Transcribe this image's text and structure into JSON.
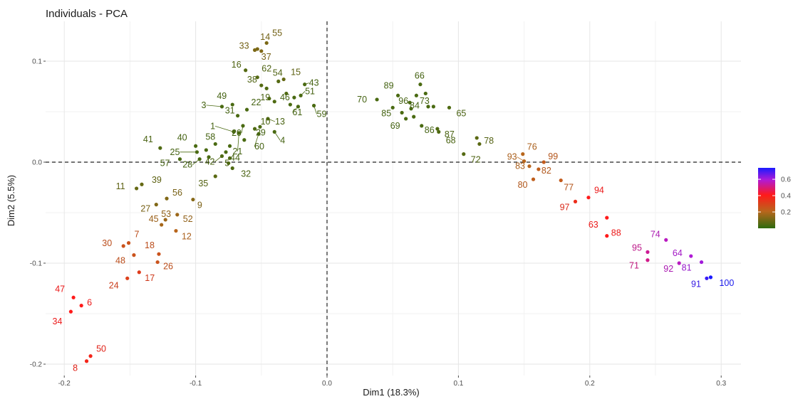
{
  "chart_data": {
    "type": "scatter",
    "title": "Individuals - PCA",
    "xlabel": "Dim1 (18.3%)",
    "ylabel": "Dim2 (5.5%)",
    "xlim": [
      -0.21,
      0.31
    ],
    "ylim": [
      -0.21,
      0.13
    ],
    "x_ticks": [
      -0.2,
      -0.1,
      0.0,
      0.1,
      0.2,
      0.3
    ],
    "x_tick_labels": [
      "-0.2",
      "-0.1",
      "0.0",
      "0.1",
      "0.2",
      "0.3"
    ],
    "y_ticks": [
      -0.2,
      -0.1,
      0.0,
      0.1
    ],
    "y_tick_labels": [
      "-0.2",
      "-0.1",
      "0.0",
      "0.1"
    ],
    "grid": true,
    "reference_lines": {
      "x": 0,
      "y": 0,
      "style": "dashed"
    },
    "legend": {
      "placement": "right",
      "type": "colorbar",
      "ticks": [
        0.2,
        0.4,
        0.6
      ],
      "tick_labels": [
        "0.2",
        "0.4",
        "0.6"
      ],
      "colors": [
        "#2e6b0f",
        "#b8661c",
        "#ff1a1a",
        "#b01ad6",
        "#1a1aff"
      ]
    },
    "points": [
      {
        "label": "1",
        "x": -0.071,
        "y": 0.03,
        "c": 0.05
      },
      {
        "label": "3",
        "x": -0.08,
        "y": 0.055,
        "c": 0.05
      },
      {
        "label": "4",
        "x": -0.04,
        "y": 0.03,
        "c": 0.05
      },
      {
        "label": "5",
        "x": -0.075,
        "y": -0.001,
        "c": 0.06
      },
      {
        "label": "6",
        "x": -0.187,
        "y": -0.142,
        "c": 0.45
      },
      {
        "label": "7",
        "x": -0.151,
        "y": -0.08,
        "c": 0.3
      },
      {
        "label": "8",
        "x": -0.183,
        "y": -0.197,
        "c": 0.42
      },
      {
        "label": "9",
        "x": -0.102,
        "y": -0.037,
        "c": 0.16
      },
      {
        "label": "10",
        "x": -0.055,
        "y": 0.033,
        "c": 0.06
      },
      {
        "label": "11",
        "x": -0.145,
        "y": -0.026,
        "c": 0.1
      },
      {
        "label": "12",
        "x": -0.115,
        "y": -0.068,
        "c": 0.25
      },
      {
        "label": "13",
        "x": -0.045,
        "y": 0.043,
        "c": 0.06
      },
      {
        "label": "14",
        "x": -0.053,
        "y": 0.112,
        "c": 0.14
      },
      {
        "label": "15",
        "x": -0.033,
        "y": 0.082,
        "c": 0.1
      },
      {
        "label": "16",
        "x": -0.062,
        "y": 0.091,
        "c": 0.07
      },
      {
        "label": "17",
        "x": -0.143,
        "y": -0.109,
        "c": 0.36
      },
      {
        "label": "18",
        "x": -0.128,
        "y": -0.091,
        "c": 0.3
      },
      {
        "label": "19",
        "x": -0.04,
        "y": 0.06,
        "c": 0.06
      },
      {
        "label": "20",
        "x": -0.064,
        "y": 0.036,
        "c": 0.05
      },
      {
        "label": "21",
        "x": -0.067,
        "y": 0.029,
        "c": 0.05
      },
      {
        "label": "22",
        "x": -0.061,
        "y": 0.052,
        "c": 0.05
      },
      {
        "label": "24",
        "x": -0.152,
        "y": -0.115,
        "c": 0.35
      },
      {
        "label": "25",
        "x": -0.099,
        "y": 0.01,
        "c": 0.05
      },
      {
        "label": "26",
        "x": -0.129,
        "y": -0.099,
        "c": 0.3
      },
      {
        "label": "27",
        "x": -0.13,
        "y": -0.042,
        "c": 0.15
      },
      {
        "label": "28",
        "x": -0.097,
        "y": 0.003,
        "c": 0.05
      },
      {
        "label": "29",
        "x": -0.051,
        "y": 0.035,
        "c": 0.05
      },
      {
        "label": "30",
        "x": -0.155,
        "y": -0.083,
        "c": 0.3
      },
      {
        "label": "31",
        "x": -0.068,
        "y": 0.046,
        "c": 0.05
      },
      {
        "label": "32",
        "x": -0.072,
        "y": -0.006,
        "c": 0.06
      },
      {
        "label": "33",
        "x": -0.055,
        "y": 0.111,
        "c": 0.14
      },
      {
        "label": "34",
        "x": -0.195,
        "y": -0.148,
        "c": 0.45
      },
      {
        "label": "35",
        "x": -0.085,
        "y": -0.014,
        "c": 0.08
      },
      {
        "label": "37",
        "x": -0.05,
        "y": 0.11,
        "c": 0.15
      },
      {
        "label": "38",
        "x": -0.05,
        "y": 0.076,
        "c": 0.07
      },
      {
        "label": "39",
        "x": -0.141,
        "y": -0.022,
        "c": 0.1
      },
      {
        "label": "40",
        "x": -0.1,
        "y": 0.016,
        "c": 0.05
      },
      {
        "label": "41",
        "x": -0.127,
        "y": 0.014,
        "c": 0.06
      },
      {
        "label": "42",
        "x": -0.08,
        "y": 0.006,
        "c": 0.06
      },
      {
        "label": "43",
        "x": -0.017,
        "y": 0.077,
        "c": 0.05
      },
      {
        "label": "44",
        "x": -0.077,
        "y": 0.01,
        "c": 0.05
      },
      {
        "label": "45",
        "x": -0.126,
        "y": -0.062,
        "c": 0.22
      },
      {
        "label": "46",
        "x": -0.025,
        "y": 0.064,
        "c": 0.05
      },
      {
        "label": "47",
        "x": -0.193,
        "y": -0.134,
        "c": 0.45
      },
      {
        "label": "48",
        "x": -0.147,
        "y": -0.092,
        "c": 0.3
      },
      {
        "label": "49",
        "x": -0.072,
        "y": 0.057,
        "c": 0.05
      },
      {
        "label": "50",
        "x": -0.18,
        "y": -0.192,
        "c": 0.42
      },
      {
        "label": "51",
        "x": -0.02,
        "y": 0.066,
        "c": 0.05
      },
      {
        "label": "52",
        "x": -0.114,
        "y": -0.052,
        "c": 0.2
      },
      {
        "label": "53",
        "x": -0.123,
        "y": -0.057,
        "c": 0.2
      },
      {
        "label": "54",
        "x": -0.037,
        "y": 0.08,
        "c": 0.07
      },
      {
        "label": "55",
        "x": -0.046,
        "y": 0.118,
        "c": 0.14
      },
      {
        "label": "56",
        "x": -0.122,
        "y": -0.036,
        "c": 0.15
      },
      {
        "label": "57",
        "x": -0.112,
        "y": 0.003,
        "c": 0.05
      },
      {
        "label": "58",
        "x": -0.085,
        "y": 0.018,
        "c": 0.05
      },
      {
        "label": "59",
        "x": -0.01,
        "y": 0.056,
        "c": 0.05
      },
      {
        "label": "60",
        "x": -0.052,
        "y": 0.028,
        "c": 0.05
      },
      {
        "label": "61",
        "x": -0.022,
        "y": 0.055,
        "c": 0.05
      },
      {
        "label": "62",
        "x": -0.053,
        "y": 0.084,
        "c": 0.07
      },
      {
        "label": "63",
        "x": 0.213,
        "y": -0.055,
        "c": 0.45
      },
      {
        "label": "64",
        "x": 0.277,
        "y": -0.093,
        "c": 0.62
      },
      {
        "label": "65",
        "x": 0.093,
        "y": 0.054,
        "c": 0.06
      },
      {
        "label": "66",
        "x": 0.071,
        "y": 0.077,
        "c": 0.05
      },
      {
        "label": "68",
        "x": 0.085,
        "y": 0.03,
        "c": 0.06
      },
      {
        "label": "69",
        "x": 0.06,
        "y": 0.043,
        "c": 0.05
      },
      {
        "label": "70",
        "x": 0.038,
        "y": 0.062,
        "c": 0.05
      },
      {
        "label": "71",
        "x": 0.244,
        "y": -0.097,
        "c": 0.55
      },
      {
        "label": "72",
        "x": 0.104,
        "y": 0.008,
        "c": 0.07
      },
      {
        "label": "73",
        "x": 0.077,
        "y": 0.055,
        "c": 0.05
      },
      {
        "label": "74",
        "x": 0.258,
        "y": -0.077,
        "c": 0.6
      },
      {
        "label": "76",
        "x": 0.149,
        "y": 0.008,
        "c": 0.25
      },
      {
        "label": "77",
        "x": 0.178,
        "y": -0.018,
        "c": 0.28
      },
      {
        "label": "78",
        "x": 0.114,
        "y": 0.024,
        "c": 0.08
      },
      {
        "label": "80",
        "x": 0.157,
        "y": -0.017,
        "c": 0.27
      },
      {
        "label": "81",
        "x": 0.285,
        "y": -0.099,
        "c": 0.63
      },
      {
        "label": "82",
        "x": 0.161,
        "y": -0.007,
        "c": 0.27
      },
      {
        "label": "83",
        "x": 0.154,
        "y": -0.004,
        "c": 0.25
      },
      {
        "label": "84",
        "x": 0.064,
        "y": 0.053,
        "c": 0.05
      },
      {
        "label": "85",
        "x": 0.05,
        "y": 0.054,
        "c": 0.05
      },
      {
        "label": "86",
        "x": 0.072,
        "y": 0.036,
        "c": 0.05
      },
      {
        "label": "87",
        "x": 0.084,
        "y": 0.033,
        "c": 0.06
      },
      {
        "label": "88",
        "x": 0.213,
        "y": -0.073,
        "c": 0.45
      },
      {
        "label": "89",
        "x": 0.054,
        "y": 0.066,
        "c": 0.05
      },
      {
        "label": "91",
        "x": 0.289,
        "y": -0.115,
        "c": 0.7
      },
      {
        "label": "92",
        "x": 0.268,
        "y": -0.1,
        "c": 0.6
      },
      {
        "label": "93",
        "x": 0.15,
        "y": 0.001,
        "c": 0.25
      },
      {
        "label": "94",
        "x": 0.199,
        "y": -0.035,
        "c": 0.45
      },
      {
        "label": "95",
        "x": 0.244,
        "y": -0.089,
        "c": 0.56
      },
      {
        "label": "96",
        "x": 0.063,
        "y": 0.059,
        "c": 0.05
      },
      {
        "label": "97",
        "x": 0.189,
        "y": -0.039,
        "c": 0.4
      },
      {
        "label": "99",
        "x": 0.165,
        "y": 0.0,
        "c": 0.28
      },
      {
        "label": "100",
        "x": 0.292,
        "y": -0.114,
        "c": 0.72
      }
    ],
    "extra_points": [
      {
        "x": -0.09,
        "y": 0.005,
        "c": 0.05
      },
      {
        "x": -0.092,
        "y": 0.012,
        "c": 0.05
      },
      {
        "x": -0.074,
        "y": 0.016,
        "c": 0.05
      },
      {
        "x": -0.074,
        "y": 0.004,
        "c": 0.06
      },
      {
        "x": -0.063,
        "y": 0.022,
        "c": 0.05
      },
      {
        "x": -0.044,
        "y": 0.063,
        "c": 0.06
      },
      {
        "x": -0.046,
        "y": 0.073,
        "c": 0.06
      },
      {
        "x": -0.031,
        "y": 0.068,
        "c": 0.06
      },
      {
        "x": -0.028,
        "y": 0.057,
        "c": 0.05
      },
      {
        "x": 0.057,
        "y": 0.049,
        "c": 0.05
      },
      {
        "x": 0.066,
        "y": 0.045,
        "c": 0.05
      },
      {
        "x": 0.068,
        "y": 0.066,
        "c": 0.05
      },
      {
        "x": 0.075,
        "y": 0.068,
        "c": 0.05
      },
      {
        "x": 0.081,
        "y": 0.055,
        "c": 0.05
      },
      {
        "x": 0.116,
        "y": 0.018,
        "c": 0.08
      }
    ]
  }
}
